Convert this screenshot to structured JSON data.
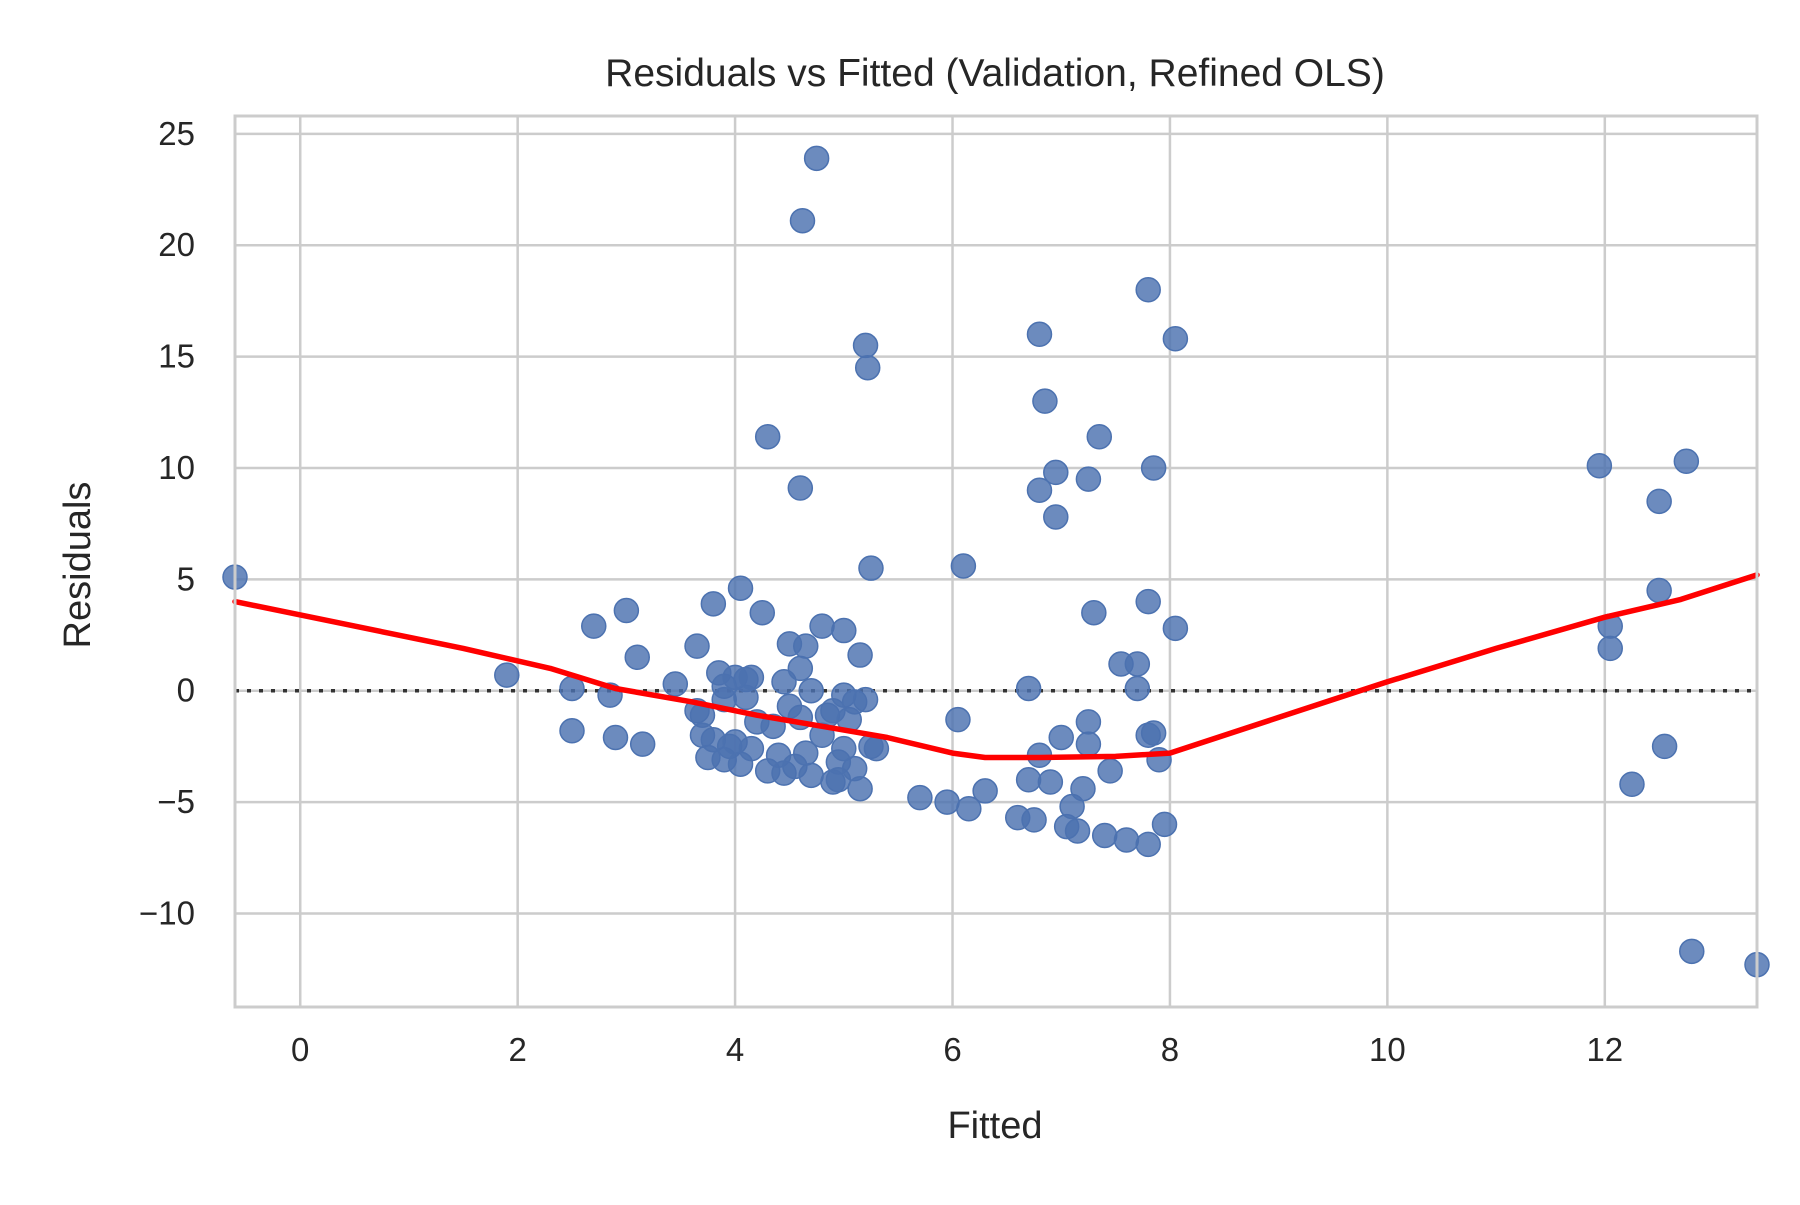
{
  "chart_data": {
    "type": "scatter",
    "title": "Residuals vs Fitted (Validation, Refined OLS)",
    "xlabel": "Fitted",
    "ylabel": "Residuals",
    "xlim": [
      -0.6,
      13.4
    ],
    "ylim": [
      -14.2,
      25.8
    ],
    "xticks": [
      0,
      2,
      4,
      6,
      8,
      10,
      12
    ],
    "yticks": [
      -10,
      -5,
      0,
      5,
      10,
      15,
      20,
      25
    ],
    "xtick_labels": [
      "0",
      "2",
      "4",
      "6",
      "8",
      "10",
      "12"
    ],
    "ytick_labels": [
      "−10",
      "−5",
      "0",
      "5",
      "10",
      "15",
      "20",
      "25"
    ],
    "grid": true,
    "zero_line": 0,
    "point_color": "#4c72b0",
    "smooth_color": "#ff0000",
    "zero_line_color": "#333333",
    "points": [
      [
        -0.6,
        5.1
      ],
      [
        1.9,
        0.7
      ],
      [
        2.5,
        0.1
      ],
      [
        2.5,
        -1.8
      ],
      [
        2.7,
        2.9
      ],
      [
        2.85,
        -0.2
      ],
      [
        2.9,
        -2.1
      ],
      [
        3.0,
        3.6
      ],
      [
        3.1,
        1.5
      ],
      [
        3.15,
        -2.4
      ],
      [
        3.45,
        0.3
      ],
      [
        3.65,
        2.0
      ],
      [
        3.65,
        -0.9
      ],
      [
        3.7,
        -1.1
      ],
      [
        3.7,
        -2.0
      ],
      [
        3.75,
        -3.0
      ],
      [
        3.8,
        3.9
      ],
      [
        3.8,
        -2.2
      ],
      [
        3.85,
        0.8
      ],
      [
        3.9,
        0.2
      ],
      [
        3.9,
        -0.4
      ],
      [
        3.9,
        -3.1
      ],
      [
        3.95,
        -2.5
      ],
      [
        4.0,
        0.6
      ],
      [
        4.0,
        -2.3
      ],
      [
        4.05,
        -3.3
      ],
      [
        4.05,
        4.6
      ],
      [
        4.1,
        0.5
      ],
      [
        4.1,
        -0.3
      ],
      [
        4.15,
        -2.6
      ],
      [
        4.15,
        0.6
      ],
      [
        4.2,
        -1.4
      ],
      [
        4.25,
        3.5
      ],
      [
        4.3,
        -3.6
      ],
      [
        4.3,
        11.4
      ],
      [
        4.35,
        -1.6
      ],
      [
        4.4,
        -2.9
      ],
      [
        4.45,
        0.4
      ],
      [
        4.45,
        -3.7
      ],
      [
        4.5,
        -0.7
      ],
      [
        4.5,
        2.1
      ],
      [
        4.55,
        -3.4
      ],
      [
        4.6,
        -1.2
      ],
      [
        4.6,
        9.1
      ],
      [
        4.6,
        1.0
      ],
      [
        4.62,
        21.1
      ],
      [
        4.65,
        2.0
      ],
      [
        4.65,
        -2.8
      ],
      [
        4.7,
        0.0
      ],
      [
        4.7,
        -3.8
      ],
      [
        4.75,
        23.9
      ],
      [
        4.8,
        -2.0
      ],
      [
        4.8,
        2.9
      ],
      [
        4.85,
        -1.1
      ],
      [
        4.9,
        -4.1
      ],
      [
        4.9,
        -0.9
      ],
      [
        4.95,
        -3.2
      ],
      [
        4.95,
        -4.0
      ],
      [
        5.0,
        -0.2
      ],
      [
        5.0,
        2.7
      ],
      [
        5.0,
        -2.6
      ],
      [
        5.05,
        -1.3
      ],
      [
        5.1,
        -3.5
      ],
      [
        5.1,
        -0.5
      ],
      [
        5.15,
        1.6
      ],
      [
        5.15,
        -4.4
      ],
      [
        5.2,
        15.5
      ],
      [
        5.2,
        -0.4
      ],
      [
        5.22,
        14.5
      ],
      [
        5.25,
        -2.5
      ],
      [
        5.25,
        5.5
      ],
      [
        5.3,
        -2.6
      ],
      [
        5.7,
        -4.8
      ],
      [
        5.95,
        -5.0
      ],
      [
        6.05,
        -1.3
      ],
      [
        6.1,
        5.6
      ],
      [
        6.15,
        -5.3
      ],
      [
        6.3,
        -4.5
      ],
      [
        6.6,
        -5.7
      ],
      [
        6.7,
        0.1
      ],
      [
        6.7,
        -4.0
      ],
      [
        6.75,
        -5.8
      ],
      [
        6.8,
        16.0
      ],
      [
        6.8,
        -2.9
      ],
      [
        6.8,
        9.0
      ],
      [
        6.85,
        13.0
      ],
      [
        6.9,
        -4.1
      ],
      [
        6.95,
        9.8
      ],
      [
        6.95,
        7.8
      ],
      [
        7.0,
        -2.1
      ],
      [
        7.05,
        -6.1
      ],
      [
        7.1,
        -5.2
      ],
      [
        7.15,
        -6.3
      ],
      [
        7.2,
        -4.4
      ],
      [
        7.25,
        -2.4
      ],
      [
        7.25,
        -1.4
      ],
      [
        7.25,
        9.5
      ],
      [
        7.3,
        3.5
      ],
      [
        7.35,
        11.4
      ],
      [
        7.4,
        -6.5
      ],
      [
        7.45,
        -3.6
      ],
      [
        7.55,
        1.2
      ],
      [
        7.6,
        -6.7
      ],
      [
        7.7,
        1.2
      ],
      [
        7.7,
        0.1
      ],
      [
        7.8,
        18.0
      ],
      [
        7.8,
        4.0
      ],
      [
        7.8,
        -6.9
      ],
      [
        7.8,
        -2.0
      ],
      [
        7.85,
        -1.9
      ],
      [
        7.85,
        10.0
      ],
      [
        7.9,
        -3.1
      ],
      [
        7.95,
        -6.0
      ],
      [
        8.05,
        15.8
      ],
      [
        8.05,
        2.8
      ],
      [
        11.95,
        10.1
      ],
      [
        12.05,
        2.9
      ],
      [
        12.05,
        1.9
      ],
      [
        12.25,
        -4.2
      ],
      [
        12.5,
        8.5
      ],
      [
        12.5,
        4.5
      ],
      [
        12.55,
        -2.5
      ],
      [
        12.8,
        -11.7
      ],
      [
        12.75,
        10.3
      ],
      [
        13.4,
        -12.3
      ]
    ],
    "smooth_line": [
      [
        -0.6,
        4.0
      ],
      [
        0.5,
        2.9
      ],
      [
        1.5,
        1.9
      ],
      [
        2.3,
        1.0
      ],
      [
        2.9,
        0.1
      ],
      [
        3.6,
        -0.5
      ],
      [
        4.2,
        -1.1
      ],
      [
        4.8,
        -1.6
      ],
      [
        5.4,
        -2.1
      ],
      [
        6.0,
        -2.8
      ],
      [
        6.3,
        -3.0
      ],
      [
        6.8,
        -3.0
      ],
      [
        7.5,
        -2.95
      ],
      [
        8.0,
        -2.8
      ],
      [
        9.0,
        -1.2
      ],
      [
        10.0,
        0.4
      ],
      [
        11.0,
        1.9
      ],
      [
        12.0,
        3.3
      ],
      [
        12.7,
        4.1
      ],
      [
        13.4,
        5.2
      ]
    ]
  }
}
